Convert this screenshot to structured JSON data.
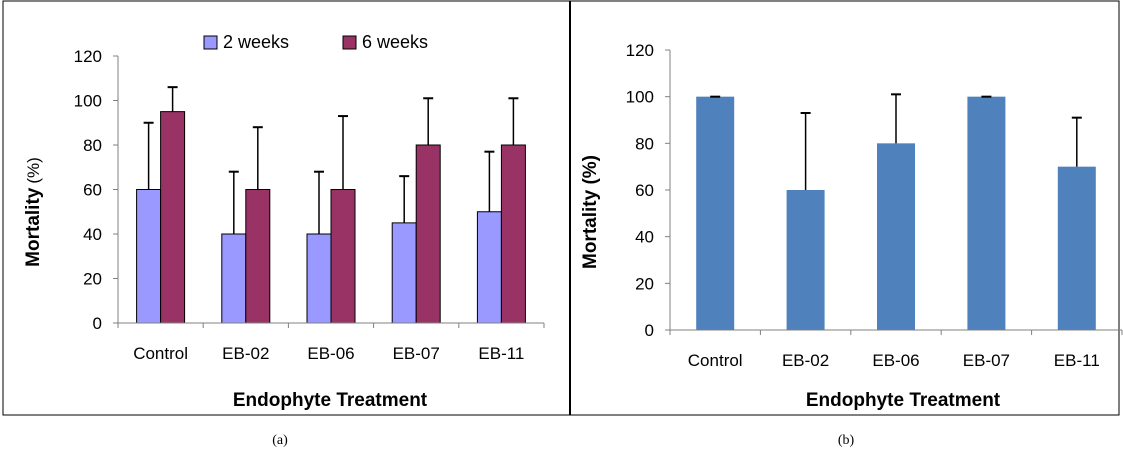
{
  "chart_data": [
    {
      "type": "bar",
      "panel_label": "(a)",
      "categories": [
        "Control",
        "EB-02",
        "EB-06",
        "EB-07",
        "EB-11"
      ],
      "series": [
        {
          "name": "2 weeks",
          "values": [
            60,
            40,
            40,
            45,
            50
          ],
          "error": [
            30,
            28,
            28,
            21,
            27
          ],
          "color": "#9999ff"
        },
        {
          "name": "6 weeks",
          "values": [
            95,
            60,
            60,
            80,
            80
          ],
          "error": [
            11,
            28,
            33,
            21,
            21
          ],
          "color": "#993366"
        }
      ],
      "xlabel": "Endophyte Treatment",
      "ylabel_main": "Mortality",
      "ylabel_unit": "(%)",
      "ylim": [
        0,
        120
      ],
      "yticks": [
        "0",
        "20",
        "40",
        "60",
        "80",
        "100",
        "120"
      ],
      "grid": false,
      "legend": "top"
    },
    {
      "type": "bar",
      "panel_label": "(b)",
      "categories": [
        "Control",
        "EB-02",
        "EB-06",
        "EB-07",
        "EB-11"
      ],
      "series": [
        {
          "name": "",
          "values": [
            100,
            60,
            80,
            100,
            70
          ],
          "error": [
            0,
            33,
            21,
            0,
            21
          ],
          "color": "#4f81bd"
        }
      ],
      "xlabel": "Endophyte Treatment",
      "ylabel": "Mortality (%)",
      "ylim": [
        0,
        120
      ],
      "yticks": [
        "0",
        "20",
        "40",
        "60",
        "80",
        "100",
        "120"
      ],
      "grid": false,
      "legend": "none"
    }
  ]
}
